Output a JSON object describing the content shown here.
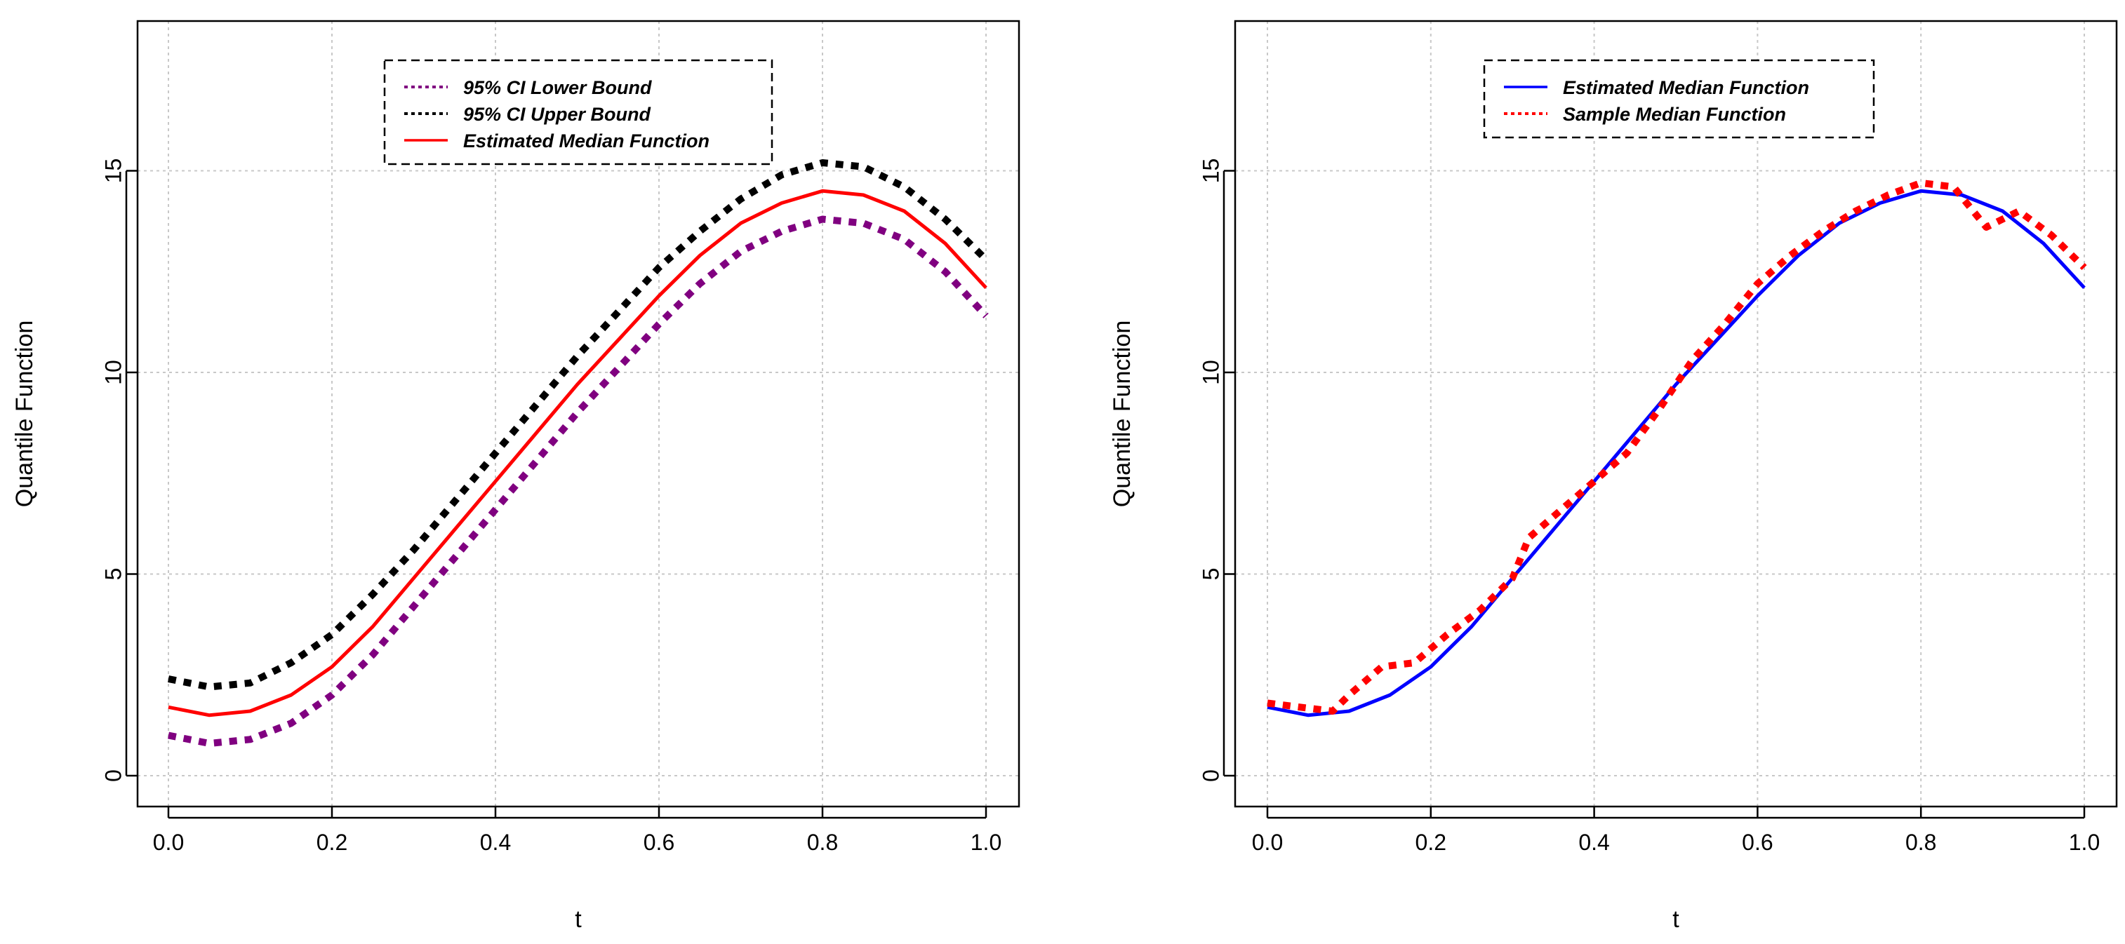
{
  "colors": {
    "purple": "#800080",
    "black": "#000000",
    "red": "#ff0000",
    "blue": "#0000ff",
    "grid": "#c8c8c8"
  },
  "chart_data": [
    {
      "type": "line",
      "xlabel": "t",
      "ylabel": "Quantile Function",
      "xlim": [
        0,
        1
      ],
      "ylim": [
        0,
        18
      ],
      "xticks": [
        "0.0",
        "0.2",
        "0.4",
        "0.6",
        "0.8",
        "1.0"
      ],
      "yticks": [
        "0",
        "5",
        "10",
        "15"
      ],
      "grid": true,
      "legend_position": "top-center",
      "x": [
        0.0,
        0.05,
        0.1,
        0.15,
        0.2,
        0.25,
        0.3,
        0.35,
        0.4,
        0.45,
        0.5,
        0.55,
        0.6,
        0.65,
        0.7,
        0.75,
        0.8,
        0.85,
        0.9,
        0.95,
        1.0
      ],
      "series": [
        {
          "name": "95% CI Lower Bound",
          "color": "#800080",
          "style": "dotted",
          "values": [
            1.0,
            0.8,
            0.9,
            1.3,
            2.0,
            3.0,
            4.2,
            5.4,
            6.6,
            7.8,
            9.0,
            10.1,
            11.2,
            12.2,
            13.0,
            13.5,
            13.8,
            13.7,
            13.3,
            12.5,
            11.4
          ]
        },
        {
          "name": "95% CI Upper Bound",
          "color": "#000000",
          "style": "dotted",
          "values": [
            2.4,
            2.2,
            2.3,
            2.8,
            3.5,
            4.5,
            5.6,
            6.8,
            8.0,
            9.2,
            10.4,
            11.5,
            12.6,
            13.5,
            14.3,
            14.9,
            15.2,
            15.1,
            14.6,
            13.8,
            12.8
          ]
        },
        {
          "name": "Estimated Median Function",
          "color": "#ff0000",
          "style": "solid",
          "values": [
            1.7,
            1.5,
            1.6,
            2.0,
            2.7,
            3.7,
            4.9,
            6.1,
            7.3,
            8.5,
            9.7,
            10.8,
            11.9,
            12.9,
            13.7,
            14.2,
            14.5,
            14.4,
            14.0,
            13.2,
            12.1
          ]
        }
      ]
    },
    {
      "type": "line",
      "xlabel": "t",
      "ylabel": "Quantile Function",
      "xlim": [
        0,
        1
      ],
      "ylim": [
        0,
        18
      ],
      "xticks": [
        "0.0",
        "0.2",
        "0.4",
        "0.6",
        "0.8",
        "1.0"
      ],
      "yticks": [
        "0",
        "5",
        "10",
        "15"
      ],
      "grid": true,
      "legend_position": "top-center",
      "series": [
        {
          "name": "Estimated Median Function",
          "color": "#0000ff",
          "style": "solid",
          "x": [
            0.0,
            0.05,
            0.1,
            0.15,
            0.2,
            0.25,
            0.3,
            0.35,
            0.4,
            0.45,
            0.5,
            0.55,
            0.6,
            0.65,
            0.7,
            0.75,
            0.8,
            0.85,
            0.9,
            0.95,
            1.0
          ],
          "values": [
            1.7,
            1.5,
            1.6,
            2.0,
            2.7,
            3.7,
            4.9,
            6.1,
            7.3,
            8.5,
            9.7,
            10.8,
            11.9,
            12.9,
            13.7,
            14.2,
            14.5,
            14.4,
            14.0,
            13.2,
            12.1
          ]
        },
        {
          "name": "Sample Median Function",
          "color": "#ff0000",
          "style": "dotted",
          "x": [
            0.0,
            0.04,
            0.08,
            0.1,
            0.14,
            0.18,
            0.22,
            0.26,
            0.3,
            0.32,
            0.36,
            0.4,
            0.44,
            0.48,
            0.52,
            0.56,
            0.6,
            0.64,
            0.68,
            0.72,
            0.76,
            0.8,
            0.84,
            0.88,
            0.92,
            0.96,
            1.0
          ],
          "values": [
            1.8,
            1.7,
            1.6,
            2.0,
            2.7,
            2.8,
            3.5,
            4.1,
            4.9,
            5.9,
            6.6,
            7.3,
            8.0,
            9.1,
            10.3,
            11.2,
            12.2,
            12.9,
            13.5,
            14.0,
            14.4,
            14.7,
            14.6,
            13.6,
            14.0,
            13.4,
            12.6
          ]
        }
      ]
    }
  ]
}
